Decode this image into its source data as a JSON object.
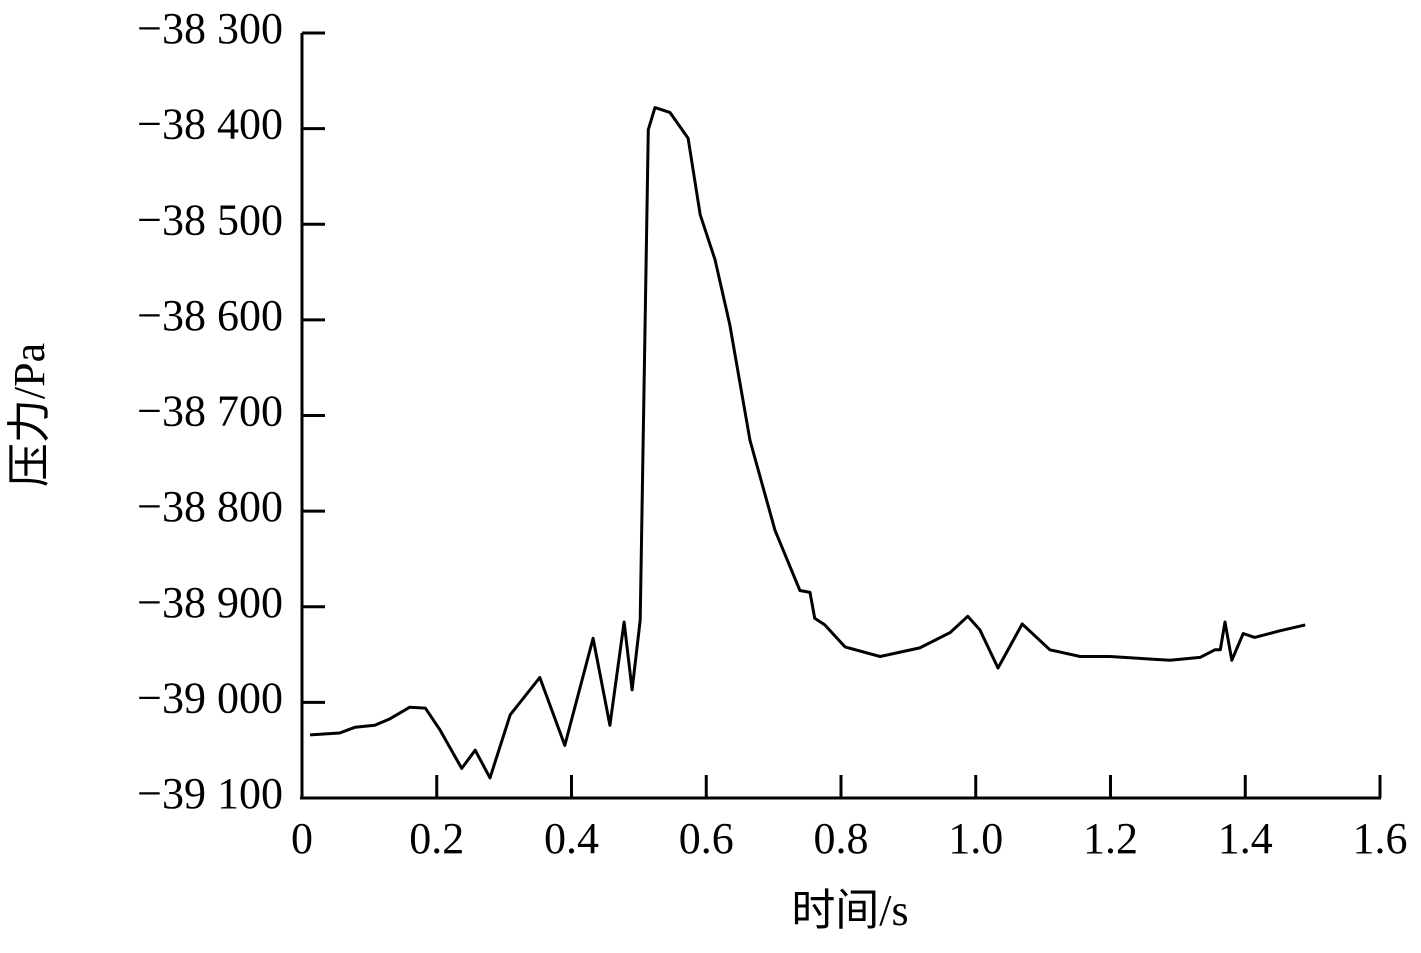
{
  "chart_data": {
    "type": "line",
    "x_label": "时间/s",
    "y_label": "压力/Pa",
    "color": "#000000",
    "grid": false,
    "x": [
      0.012,
      0.056,
      0.079,
      0.108,
      0.131,
      0.16,
      0.183,
      0.205,
      0.237,
      0.257,
      0.279,
      0.309,
      0.353,
      0.39,
      0.432,
      0.457,
      0.478,
      0.49,
      0.502,
      0.514,
      0.524,
      0.546,
      0.573,
      0.591,
      0.613,
      0.635,
      0.665,
      0.702,
      0.739,
      0.754,
      0.761,
      0.776,
      0.806,
      0.858,
      0.917,
      0.962,
      0.988,
      1.006,
      1.033,
      1.069,
      1.11,
      1.155,
      1.199,
      1.288,
      1.333,
      1.355,
      1.363,
      1.37,
      1.38,
      1.397,
      1.414,
      1.452,
      1.489
    ],
    "values": [
      -39034,
      -39032,
      -39026,
      -39024,
      -39017,
      -39005,
      -39006,
      -39029,
      -39069,
      -39050,
      -39079,
      -39013,
      -38974,
      -39045,
      -38933,
      -39024,
      -38916,
      -38987,
      -38914,
      -38401,
      -38378,
      -38383,
      -38410,
      -38490,
      -38537,
      -38605,
      -38726,
      -38820,
      -38883,
      -38885,
      -38912,
      -38919,
      -38942,
      -38952,
      -38943,
      -38927,
      -38910,
      -38924,
      -38964,
      -38918,
      -38945,
      -38952,
      -38952,
      -38956,
      -38953,
      -38945,
      -38945,
      -38916,
      -38956,
      -38928,
      -38932,
      -38925,
      -38919
    ],
    "xlim": [
      0,
      1.6
    ],
    "xticks": [
      0,
      0.2,
      0.4,
      0.6,
      0.8,
      {
        "value": 1.0,
        "label": "1.0"
      },
      1.2,
      1.4,
      1.6
    ],
    "ylim": [
      -39100,
      -38300
    ],
    "yticks": [
      {
        "value": -39100,
        "label": "−39 100"
      },
      {
        "value": -39000,
        "label": "−39 000"
      },
      {
        "value": -38900,
        "label": "−38 900"
      },
      {
        "value": -38800,
        "label": "−38 800"
      },
      {
        "value": -38700,
        "label": "−38 700"
      },
      {
        "value": -38600,
        "label": "−38 600"
      },
      {
        "value": -38500,
        "label": "−38 500"
      },
      {
        "value": -38400,
        "label": "−38 400"
      },
      {
        "value": -38300,
        "label": "−38 300"
      }
    ]
  }
}
